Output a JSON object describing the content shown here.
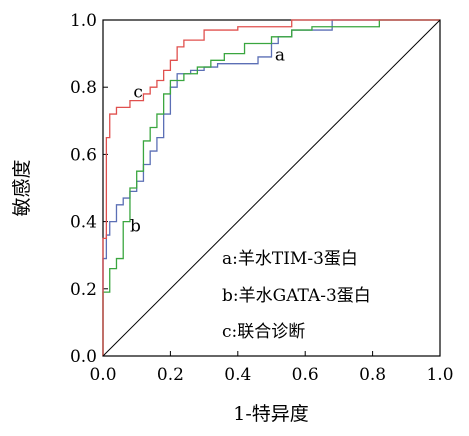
{
  "chart_data": {
    "type": "line",
    "title": "",
    "xlabel": "1-特异度",
    "ylabel": "敏感度",
    "xlim": [
      0,
      1
    ],
    "ylim": [
      0,
      1
    ],
    "x_ticks": [
      "0.0",
      "0.2",
      "0.4",
      "0.6",
      "0.8",
      "1.0"
    ],
    "y_ticks": [
      "0.0",
      "0.2",
      "0.4",
      "0.6",
      "0.8",
      "1.0"
    ],
    "grid": false,
    "legend_placement": "bottom-right",
    "legend": [
      "a:羊水TIM-3蛋白",
      "b:羊水GATA-3蛋白",
      "c:联合诊断"
    ],
    "series": [
      {
        "name": "a",
        "color": "#5b6fb5",
        "x": [
          0.0,
          0.0,
          0.01,
          0.01,
          0.02,
          0.02,
          0.04,
          0.04,
          0.06,
          0.06,
          0.08,
          0.08,
          0.1,
          0.1,
          0.12,
          0.12,
          0.14,
          0.14,
          0.16,
          0.16,
          0.18,
          0.18,
          0.2,
          0.2,
          0.22,
          0.22,
          0.26,
          0.26,
          0.3,
          0.3,
          0.34,
          0.34,
          0.38,
          0.38,
          0.46,
          0.46,
          0.5,
          0.5,
          0.52,
          0.52,
          0.56,
          0.56,
          0.6,
          0.6,
          0.68,
          0.68,
          1.0
        ],
        "y": [
          0.0,
          0.29,
          0.29,
          0.36,
          0.36,
          0.4,
          0.4,
          0.45,
          0.45,
          0.47,
          0.47,
          0.49,
          0.49,
          0.52,
          0.52,
          0.57,
          0.57,
          0.61,
          0.61,
          0.65,
          0.65,
          0.72,
          0.72,
          0.8,
          0.8,
          0.84,
          0.84,
          0.85,
          0.85,
          0.86,
          0.86,
          0.87,
          0.87,
          0.87,
          0.87,
          0.89,
          0.89,
          0.93,
          0.93,
          0.95,
          0.95,
          0.97,
          0.97,
          0.97,
          0.97,
          1.0,
          1.0
        ]
      },
      {
        "name": "b",
        "color": "#3aa63f",
        "x": [
          0.0,
          0.0,
          0.02,
          0.02,
          0.04,
          0.04,
          0.06,
          0.06,
          0.08,
          0.08,
          0.1,
          0.1,
          0.12,
          0.12,
          0.14,
          0.14,
          0.16,
          0.16,
          0.18,
          0.18,
          0.2,
          0.2,
          0.24,
          0.24,
          0.28,
          0.28,
          0.32,
          0.32,
          0.36,
          0.36,
          0.42,
          0.42,
          0.5,
          0.5,
          0.56,
          0.56,
          0.62,
          0.62,
          0.82,
          0.82,
          1.0
        ],
        "y": [
          0.0,
          0.19,
          0.19,
          0.26,
          0.26,
          0.29,
          0.29,
          0.4,
          0.4,
          0.5,
          0.5,
          0.55,
          0.55,
          0.64,
          0.64,
          0.68,
          0.68,
          0.72,
          0.72,
          0.78,
          0.78,
          0.82,
          0.82,
          0.84,
          0.84,
          0.86,
          0.86,
          0.88,
          0.88,
          0.9,
          0.9,
          0.93,
          0.93,
          0.95,
          0.95,
          0.97,
          0.97,
          0.98,
          0.98,
          1.0,
          1.0
        ]
      },
      {
        "name": "c",
        "color": "#e0504e",
        "x": [
          0.0,
          0.0,
          0.01,
          0.01,
          0.02,
          0.02,
          0.04,
          0.04,
          0.08,
          0.08,
          0.12,
          0.12,
          0.14,
          0.14,
          0.16,
          0.16,
          0.18,
          0.18,
          0.2,
          0.2,
          0.22,
          0.22,
          0.24,
          0.24,
          0.3,
          0.3,
          0.4,
          0.4,
          0.56,
          0.56,
          1.0
        ],
        "y": [
          0.0,
          0.35,
          0.35,
          0.65,
          0.65,
          0.72,
          0.72,
          0.74,
          0.74,
          0.76,
          0.76,
          0.78,
          0.78,
          0.8,
          0.8,
          0.82,
          0.82,
          0.85,
          0.85,
          0.88,
          0.88,
          0.92,
          0.92,
          0.94,
          0.94,
          0.97,
          0.97,
          0.98,
          0.98,
          1.0,
          1.0
        ]
      },
      {
        "name": "",
        "color": "#000000",
        "x": [
          0.0,
          1.0
        ],
        "y": [
          0.0,
          1.0
        ]
      }
    ],
    "curve_labels": [
      {
        "text": "a",
        "x": 0.51,
        "y": 0.88
      },
      {
        "text": "b",
        "x": 0.08,
        "y": 0.37
      },
      {
        "text": "c",
        "x": 0.09,
        "y": 0.77
      }
    ]
  }
}
